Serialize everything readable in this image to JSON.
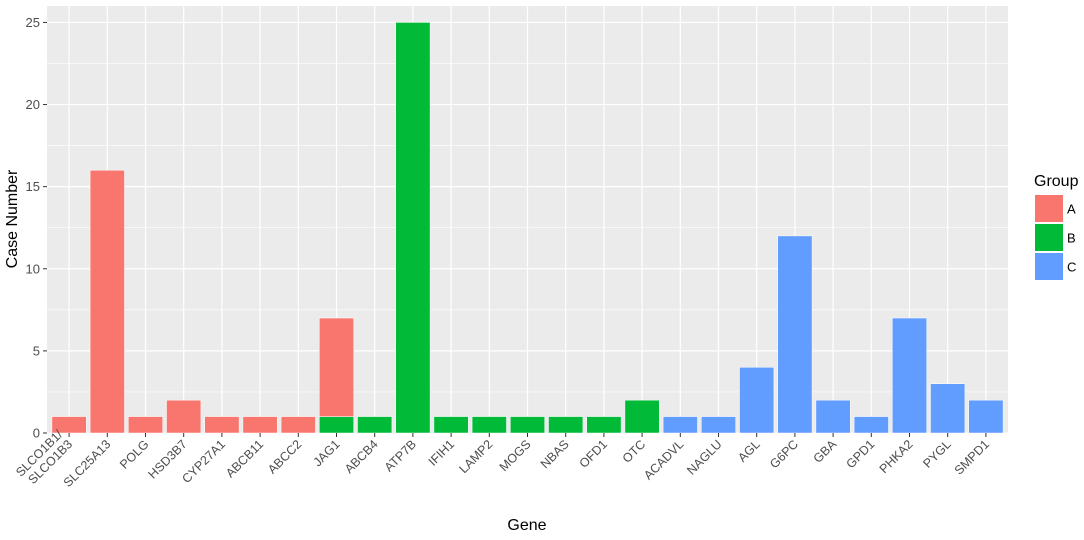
{
  "chart_data": {
    "type": "bar",
    "stacked": true,
    "xlabel": "Gene",
    "ylabel": "Case Number",
    "ylim": [
      0,
      26
    ],
    "yticks": [
      0,
      5,
      10,
      15,
      20,
      25
    ],
    "grid": true,
    "legend": {
      "title": "Group",
      "position": "right"
    },
    "categories": [
      "SLCO1B1/ SLCO1B3",
      "SLC25A13",
      "POLG",
      "HSD3B7",
      "CYP27A1",
      "ABCB11",
      "ABCC2",
      "JAG1",
      "ABCB4",
      "ATP7B",
      "IFIH1",
      "LAMP2",
      "MOGS",
      "NBAS",
      "OFD1",
      "OTC",
      "ACADVL",
      "NAGLU",
      "AGL",
      "G6PC",
      "GBA",
      "GPD1",
      "PHKA2",
      "PYGL",
      "SMPD1"
    ],
    "series": [
      {
        "name": "A",
        "color": "#F8766D",
        "values": [
          1,
          16,
          1,
          2,
          1,
          1,
          1,
          6,
          0,
          0,
          0,
          0,
          0,
          0,
          0,
          0,
          0,
          0,
          0,
          0,
          0,
          0,
          0,
          0,
          0
        ]
      },
      {
        "name": "B",
        "color": "#00BA38",
        "values": [
          0,
          0,
          0,
          0,
          0,
          0,
          0,
          1,
          1,
          25,
          1,
          1,
          1,
          1,
          1,
          2,
          0,
          0,
          0,
          0,
          0,
          0,
          0,
          0,
          0
        ]
      },
      {
        "name": "C",
        "color": "#619CFF",
        "values": [
          0,
          0,
          0,
          0,
          0,
          0,
          0,
          0,
          0,
          0,
          0,
          0,
          0,
          0,
          0,
          0,
          1,
          1,
          4,
          12,
          2,
          1,
          7,
          3,
          2
        ]
      }
    ]
  }
}
